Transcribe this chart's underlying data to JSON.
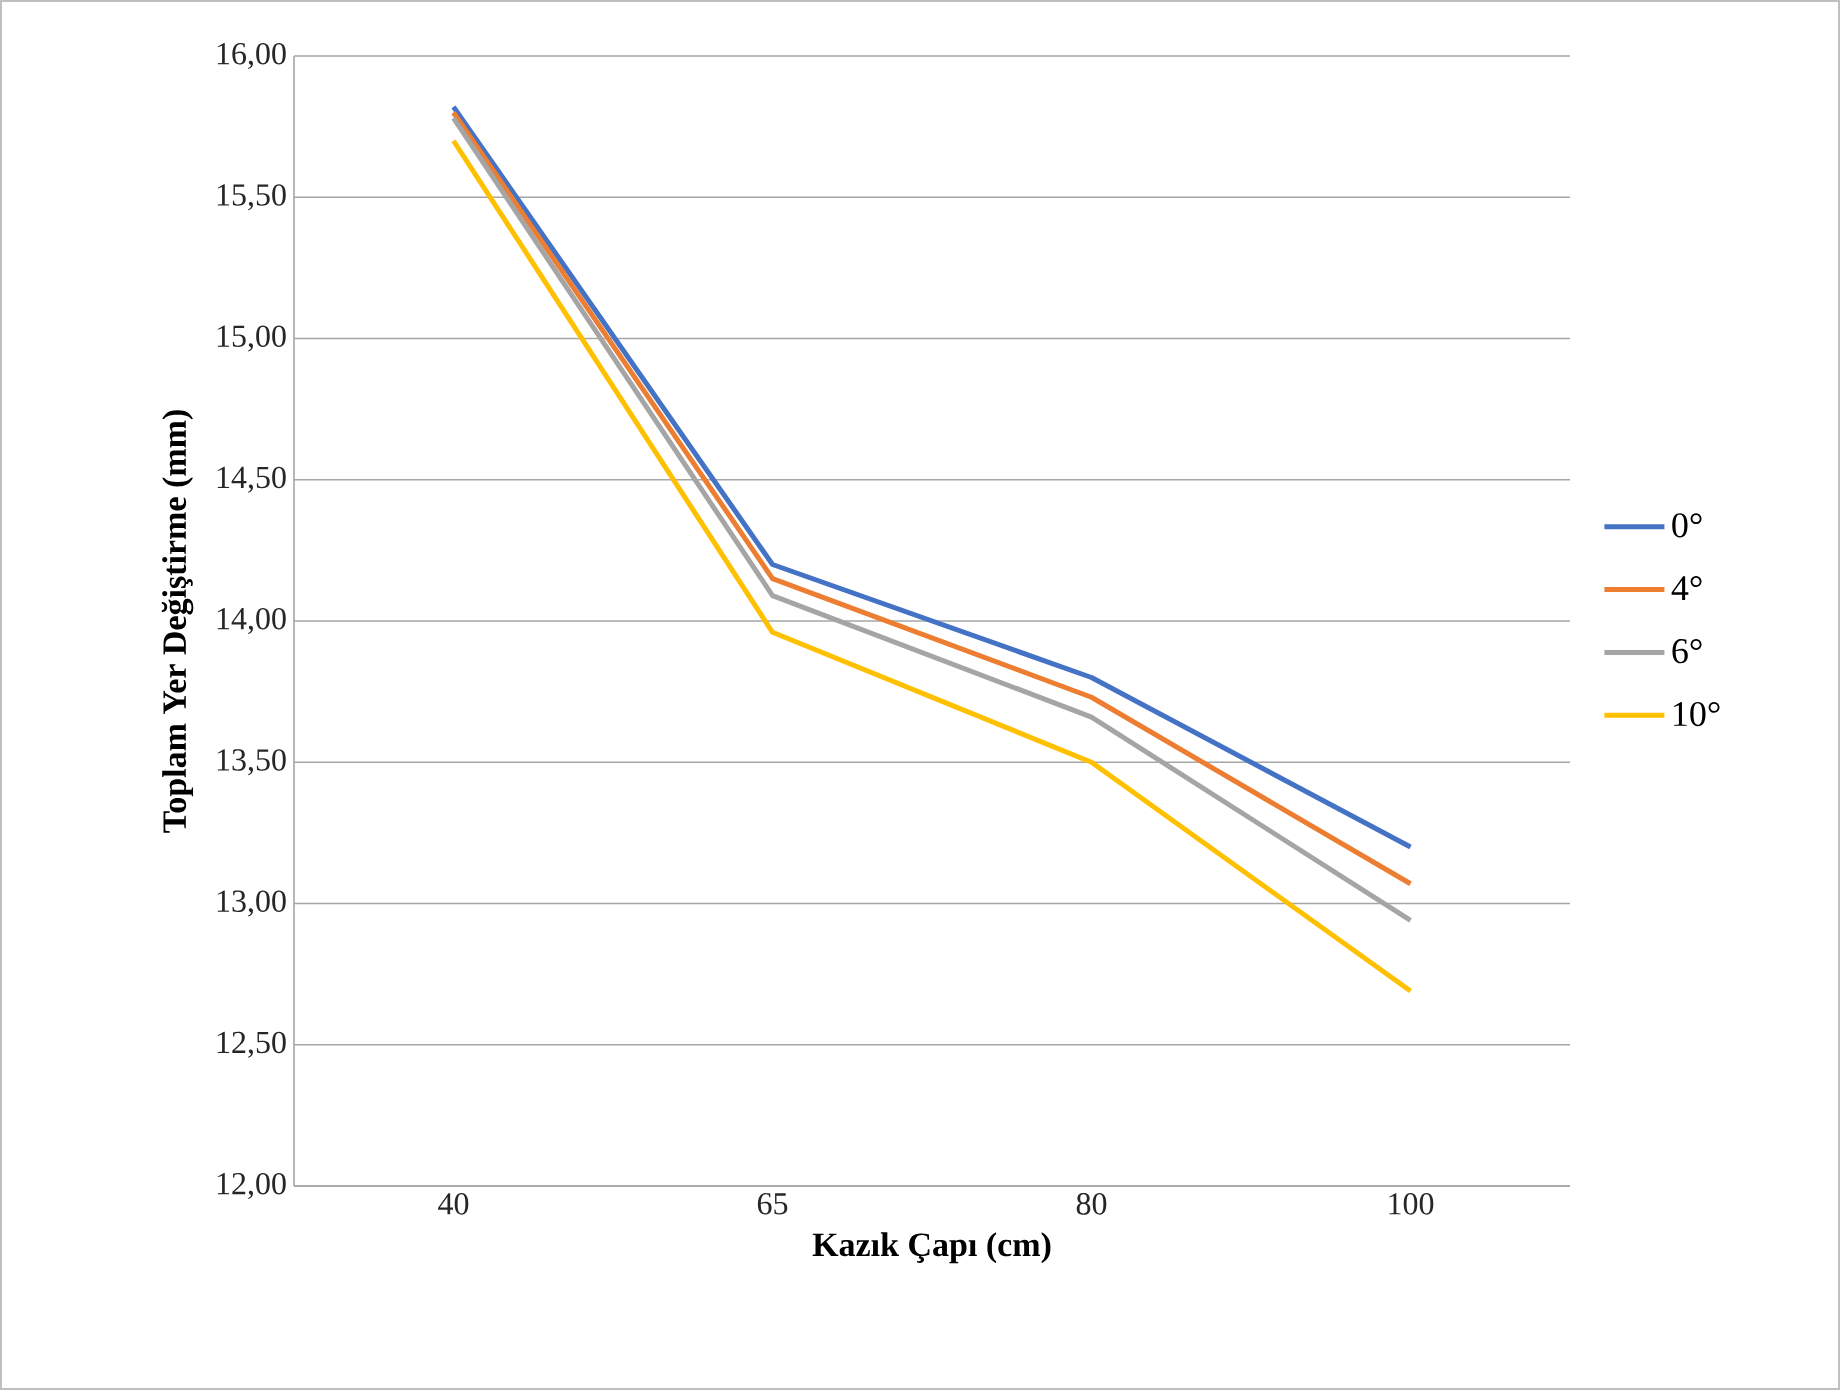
{
  "chart_data": {
    "type": "line",
    "xlabel": "Kazık Çapı (cm)",
    "ylabel": "Toplam Yer Değiştirme (mm)",
    "categories": [
      "40",
      "65",
      "80",
      "100"
    ],
    "series": [
      {
        "name": "0°",
        "color": "#4472c4",
        "values": [
          15.82,
          14.2,
          13.8,
          13.2
        ]
      },
      {
        "name": "4°",
        "color": "#ed7d31",
        "values": [
          15.8,
          14.15,
          13.73,
          13.07
        ]
      },
      {
        "name": "6°",
        "color": "#a5a5a5",
        "values": [
          15.78,
          14.09,
          13.66,
          12.94
        ]
      },
      {
        "name": "10°",
        "color": "#ffc000",
        "values": [
          15.7,
          13.96,
          13.5,
          12.69
        ]
      }
    ],
    "ylim": [
      12,
      16
    ],
    "yticks": [
      {
        "value": 12,
        "label": "12,00"
      },
      {
        "value": 12.5,
        "label": "12,50"
      },
      {
        "value": 13,
        "label": "13,00"
      },
      {
        "value": 13.5,
        "label": "13,50"
      },
      {
        "value": 14,
        "label": "14,00"
      },
      {
        "value": 14.5,
        "label": "14,50"
      },
      {
        "value": 15,
        "label": "15,00"
      },
      {
        "value": 15.5,
        "label": "15,50"
      },
      {
        "value": 16,
        "label": "16,00"
      }
    ],
    "grid": "y",
    "legend": "right",
    "marker": "none",
    "line_style": "solid"
  }
}
